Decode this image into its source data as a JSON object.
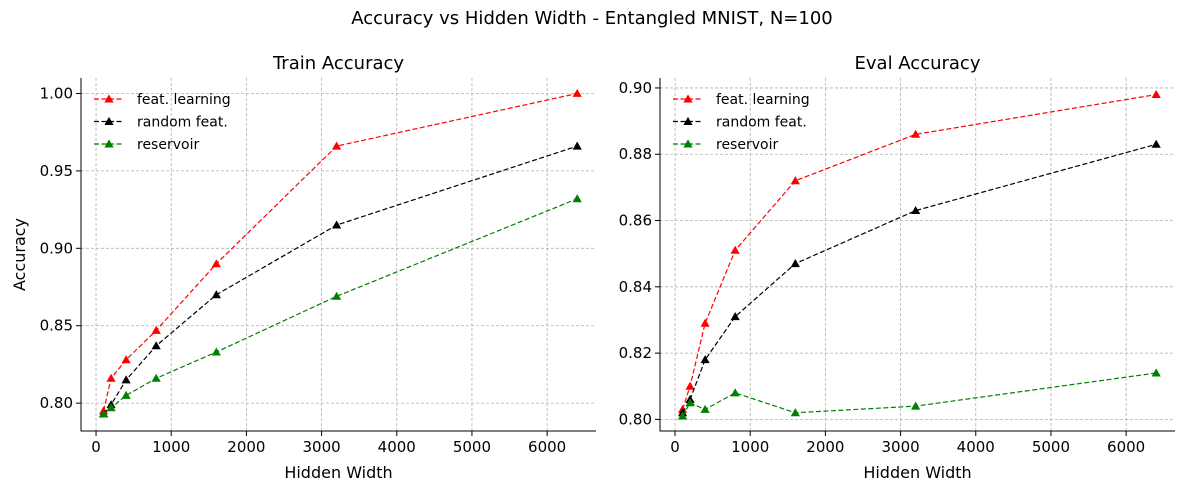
{
  "chart_data": {
    "suptitle": "Accuracy vs Hidden Width - Entangled MNIST, N=100",
    "charts": [
      {
        "type": "line",
        "title": "Train Accuracy",
        "xlabel": "Hidden Width",
        "ylabel": "Accuracy",
        "xlim": [
          -200,
          6650
        ],
        "ylim": [
          0.782,
          1.01
        ],
        "xticks": [
          0,
          1000,
          2000,
          3000,
          4000,
          5000,
          6000
        ],
        "yticks": [
          "0.80",
          "0.85",
          "0.90",
          "0.95",
          "1.00"
        ],
        "grid": true,
        "legend_position": "upper-left",
        "x": [
          100,
          200,
          400,
          800,
          1600,
          3200,
          6400
        ],
        "series": [
          {
            "name": "feat. learning",
            "color": "#ff0000",
            "values": [
              0.795,
              0.816,
              0.828,
              0.847,
              0.89,
              0.966,
              1.0
            ]
          },
          {
            "name": "random feat.",
            "color": "#000000",
            "values": [
              0.793,
              0.799,
              0.815,
              0.837,
              0.87,
              0.915,
              0.966
            ]
          },
          {
            "name": "reservoir",
            "color": "#008000",
            "values": [
              0.793,
              0.797,
              0.805,
              0.816,
              0.833,
              0.869,
              0.932
            ]
          }
        ]
      },
      {
        "type": "line",
        "title": "Eval Accuracy",
        "xlabel": "Hidden Width",
        "ylabel": "",
        "xlim": [
          -200,
          6650
        ],
        "ylim": [
          0.7965,
          0.903
        ],
        "xticks": [
          0,
          1000,
          2000,
          3000,
          4000,
          5000,
          6000
        ],
        "yticks": [
          "0.80",
          "0.82",
          "0.84",
          "0.86",
          "0.88",
          "0.90"
        ],
        "grid": true,
        "legend_position": "upper-left",
        "x": [
          100,
          200,
          400,
          800,
          1600,
          3200,
          6400
        ],
        "series": [
          {
            "name": "feat. learning",
            "color": "#ff0000",
            "values": [
              0.803,
              0.81,
              0.829,
              0.851,
              0.872,
              0.886,
              0.898
            ]
          },
          {
            "name": "random feat.",
            "color": "#000000",
            "values": [
              0.802,
              0.806,
              0.818,
              0.831,
              0.847,
              0.863,
              0.883
            ]
          },
          {
            "name": "reservoir",
            "color": "#008000",
            "values": [
              0.801,
              0.805,
              0.803,
              0.808,
              0.802,
              0.804,
              0.814
            ]
          }
        ]
      }
    ]
  }
}
